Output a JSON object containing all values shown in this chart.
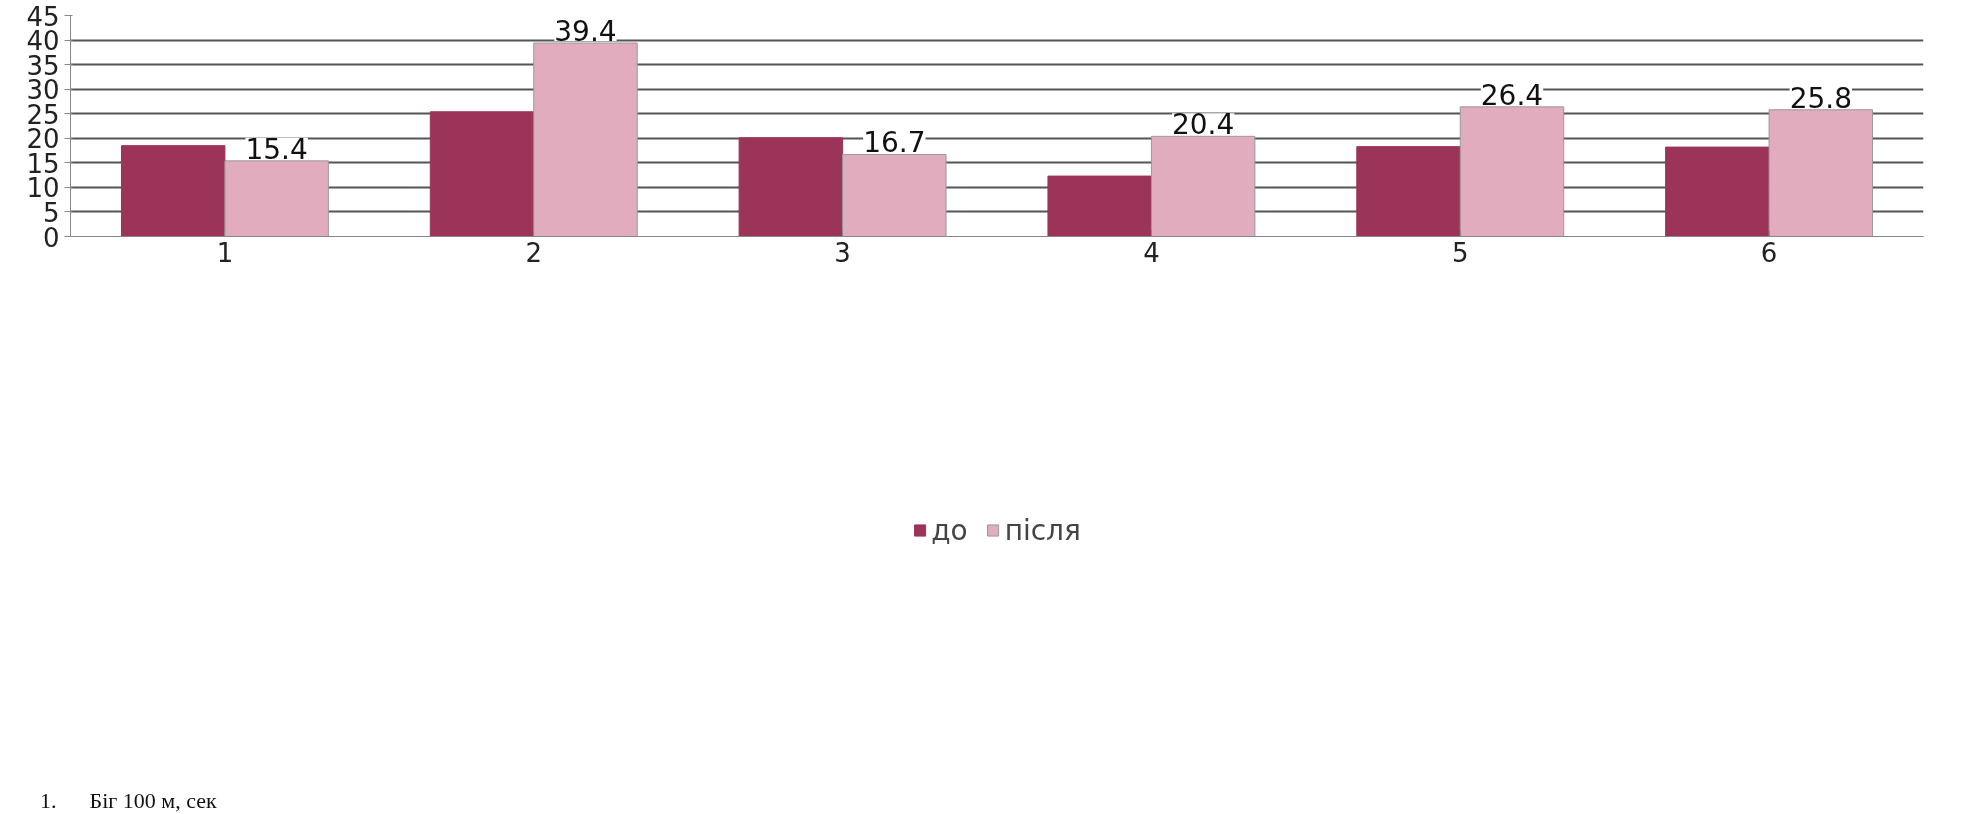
{
  "chart_data": {
    "type": "bar",
    "categories": [
      "1",
      "2",
      "3",
      "4",
      "5",
      "6"
    ],
    "series": [
      {
        "name": "до",
        "color": "#9c3358",
        "values": [
          18.5,
          25.4,
          20.1,
          12.3,
          18.3,
          18.2
        ]
      },
      {
        "name": "після",
        "color": "#e0acbe",
        "values": [
          15.4,
          39.4,
          16.7,
          20.4,
          26.4,
          25.8
        ],
        "value_labels": [
          "15.4",
          "39.4",
          "16.7",
          "20.4",
          "26.4",
          "25.8"
        ]
      }
    ],
    "ylim": [
      0,
      45
    ],
    "yticks": [
      0,
      5,
      10,
      15,
      20,
      25,
      30,
      35,
      40,
      45
    ],
    "grid": "y",
    "legend": "bottom",
    "annotations": [
      "1.      Біг 100 м, сек"
    ]
  }
}
